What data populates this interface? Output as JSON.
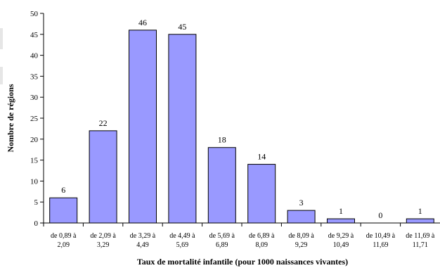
{
  "chart_data": {
    "type": "bar",
    "title": "",
    "xlabel": "Taux de mortalité infantile (pour 1000 naissances vivantes)",
    "ylabel": "Nombre de régions",
    "ylim": [
      0,
      50
    ],
    "yticks": [
      0,
      5,
      10,
      15,
      20,
      25,
      30,
      35,
      40,
      45,
      50
    ],
    "grid": false,
    "bar_color": "#9999ff",
    "categories": [
      [
        "de 0,89 à",
        "2,09"
      ],
      [
        "de 2,09 à",
        "3,29"
      ],
      [
        "de 3,29 à",
        "4,49"
      ],
      [
        "de 4,49 à",
        "5,69"
      ],
      [
        "de 5,69 à",
        "6,89"
      ],
      [
        "de 6,89 à",
        "8,09"
      ],
      [
        "de 8,09 à",
        "9,29"
      ],
      [
        "de 9,29 à",
        "10,49"
      ],
      [
        "de 10,49 à",
        "11,69"
      ],
      [
        "de 11,69 à",
        "11,71"
      ]
    ],
    "values": [
      6,
      22,
      46,
      45,
      18,
      14,
      3,
      1,
      0,
      1
    ]
  }
}
